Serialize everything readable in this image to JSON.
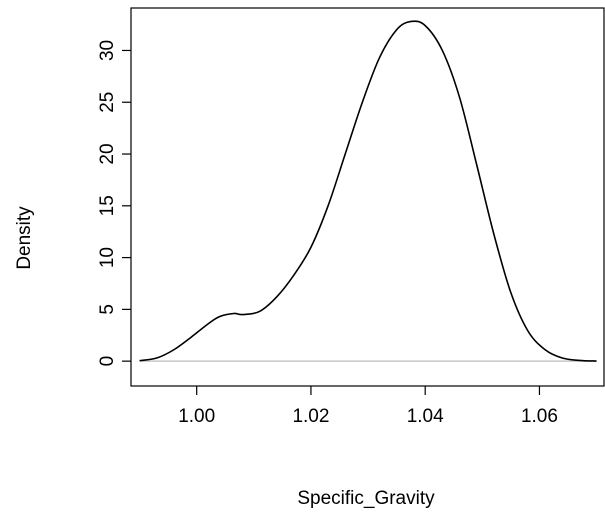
{
  "chart_data": {
    "type": "line",
    "title": "",
    "xlabel": "Specific_Gravity",
    "ylabel": "Density",
    "xlim": [
      0.9885,
      1.0713
    ],
    "ylim": [
      -2.4,
      34.1
    ],
    "x_ticks": [
      1.0,
      1.02,
      1.04,
      1.06
    ],
    "x_tick_labels": [
      "1.00",
      "1.02",
      "1.04",
      "1.06"
    ],
    "y_ticks": [
      0,
      5,
      10,
      15,
      20,
      25,
      30
    ],
    "y_tick_labels": [
      "0",
      "5",
      "10",
      "15",
      "20",
      "25",
      "30"
    ],
    "grid": false,
    "baseline": 0,
    "series": [
      {
        "color": "#000000",
        "x": [
          0.99,
          0.993,
          0.996,
          0.999,
          1.002,
          1.004,
          1.0065,
          1.008,
          1.011,
          1.014,
          1.017,
          1.02,
          1.023,
          1.026,
          1.029,
          1.032,
          1.035,
          1.0375,
          1.04,
          1.043,
          1.046,
          1.049,
          1.052,
          1.055,
          1.058,
          1.061,
          1.064,
          1.067,
          1.07
        ],
        "y": [
          0.05,
          0.3,
          1.1,
          2.3,
          3.6,
          4.3,
          4.6,
          4.5,
          4.8,
          6.2,
          8.3,
          11.0,
          15.0,
          20.0,
          25.0,
          29.3,
          32.0,
          32.8,
          32.4,
          30.0,
          25.5,
          19.0,
          12.3,
          6.6,
          2.9,
          1.1,
          0.3,
          0.07,
          0.01
        ]
      }
    ]
  }
}
